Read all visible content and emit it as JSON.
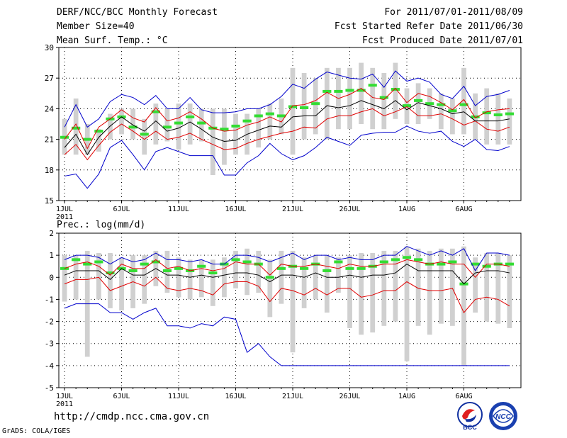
{
  "header": {
    "left": [
      "DERF/NCC/BCC Monthly Forecast",
      "Member Size=40",
      "Mean Surf. Temp.: °C"
    ],
    "right": [
      "For 2011/07/01-2011/08/09",
      "Fcst Started Refer Date 2011/06/30",
      "Fcst Produced Date 2011/07/01"
    ]
  },
  "precip_label": "Prec.: log(mm/d)",
  "url": "http://cmdp.ncc.cma.gov.cn",
  "credit": "GrADS: COLA/IGES",
  "logos": {
    "bcc": "BCC",
    "ncc": "NCC"
  },
  "colors": {
    "mean": "#000000",
    "spread": "#e00000",
    "extreme": "#0000cc",
    "box": "#d0d0d0",
    "median": "#33dd33"
  },
  "chart_data": [
    {
      "type": "line",
      "title": "Mean Surf. Temp.",
      "ylabel": "°C",
      "ylim": [
        15,
        30
      ],
      "yticks": [
        15,
        18,
        21,
        24,
        27,
        30
      ],
      "xticks": [
        {
          "day": 1,
          "label": "1JUL",
          "sub": "2011"
        },
        {
          "day": 6,
          "label": "6JUL"
        },
        {
          "day": 11,
          "label": "11JUL"
        },
        {
          "day": 16,
          "label": "16JUL"
        },
        {
          "day": 21,
          "label": "21JUL"
        },
        {
          "day": 26,
          "label": "26JUL"
        },
        {
          "day": 31,
          "label": "1AUG"
        },
        {
          "day": 36,
          "label": "6AUG"
        }
      ],
      "x": [
        1,
        2,
        3,
        4,
        5,
        6,
        7,
        8,
        9,
        10,
        11,
        12,
        13,
        14,
        15,
        16,
        17,
        18,
        19,
        20,
        21,
        22,
        23,
        24,
        25,
        26,
        27,
        28,
        29,
        30,
        31,
        32,
        33,
        34,
        35,
        36,
        37,
        38,
        39,
        40
      ],
      "series": [
        {
          "name": "max",
          "role": "extreme",
          "values": [
            17.4,
            17.6,
            16.2,
            17.6,
            20.2,
            20.9,
            19.5,
            18.0,
            19.8,
            20.2,
            19.8,
            19.4,
            19.4,
            19.4,
            17.5,
            17.5,
            18.7,
            19.4,
            20.6,
            19.6,
            19.0,
            19.4,
            20.2,
            21.2,
            20.8,
            20.4,
            21.4,
            21.6,
            21.7,
            21.7,
            22.3,
            21.8,
            21.6,
            21.8,
            20.8,
            20.3,
            21.0,
            20.0,
            19.9,
            20.3
          ]
        },
        {
          "name": "min",
          "role": "extreme",
          "values": [
            22.2,
            24.4,
            22.2,
            23.0,
            24.7,
            25.4,
            25.1,
            24.4,
            25.3,
            24.0,
            24.0,
            25.1,
            23.9,
            23.6,
            23.6,
            23.7,
            24.0,
            24.0,
            24.4,
            25.2,
            26.4,
            26.0,
            26.9,
            27.6,
            27.3,
            27.0,
            26.9,
            27.4,
            26.1,
            27.7,
            26.7,
            27.0,
            26.6,
            25.4,
            25.0,
            26.2,
            24.3,
            25.2,
            25.4,
            25.8
          ]
        },
        {
          "name": "lower",
          "role": "spread",
          "values": [
            19.5,
            20.5,
            19.0,
            20.4,
            21.7,
            22.5,
            21.8,
            21.0,
            21.8,
            21.0,
            21.2,
            21.6,
            21.0,
            20.5,
            20.0,
            20.1,
            20.6,
            21.0,
            21.3,
            21.6,
            21.8,
            22.2,
            22.1,
            23.0,
            23.3,
            23.3,
            23.7,
            24.0,
            23.3,
            23.7,
            24.2,
            23.3,
            23.3,
            23.5,
            23.0,
            22.4,
            22.8,
            22.0,
            21.8,
            22.2
          ]
        },
        {
          "name": "upper",
          "role": "spread",
          "values": [
            21.0,
            22.5,
            20.1,
            22.2,
            23.0,
            23.9,
            23.1,
            22.7,
            24.1,
            22.8,
            23.1,
            23.7,
            23.0,
            22.1,
            21.8,
            21.9,
            22.4,
            22.7,
            23.2,
            22.7,
            24.3,
            24.4,
            24.8,
            25.6,
            25.0,
            25.4,
            26.0,
            25.1,
            24.9,
            26.0,
            24.6,
            25.5,
            25.2,
            24.6,
            23.9,
            24.9,
            23.1,
            23.7,
            23.9,
            24.0
          ]
        },
        {
          "name": "mean",
          "role": "mean",
          "values": [
            20.2,
            21.5,
            19.5,
            21.2,
            22.3,
            23.2,
            22.4,
            21.8,
            22.8,
            21.8,
            22.1,
            22.7,
            22.0,
            21.2,
            20.8,
            20.9,
            21.5,
            21.9,
            22.3,
            22.2,
            23.2,
            23.3,
            23.3,
            24.3,
            24.1,
            24.3,
            24.8,
            24.4,
            24.0,
            24.8,
            23.9,
            24.6,
            24.3,
            24.0,
            23.5,
            23.7,
            22.8,
            22.8,
            22.8,
            23.0
          ]
        }
      ],
      "boxes": {
        "low": [
          19.5,
          19.5,
          19.5,
          19.8,
          21.0,
          21.5,
          21.0,
          19.5,
          20.5,
          20.8,
          20.0,
          20.5,
          20.8,
          17.5,
          18.5,
          19.5,
          19.5,
          20.2,
          21.0,
          21.5,
          19.5,
          21.0,
          21.5,
          21.0,
          22.0,
          22.0,
          22.5,
          22.0,
          22.0,
          23.0,
          22.5,
          22.5,
          23.0,
          22.0,
          21.5,
          21.5,
          21.0,
          20.5,
          20.5,
          20.5
        ],
        "high": [
          23.0,
          25.0,
          22.5,
          22.0,
          23.5,
          24.0,
          24.0,
          23.0,
          24.5,
          24.0,
          24.5,
          24.5,
          24.0,
          24.0,
          24.0,
          23.5,
          23.5,
          24.0,
          24.5,
          25.0,
          28.0,
          27.5,
          27.0,
          28.0,
          28.0,
          28.0,
          28.5,
          28.0,
          27.5,
          28.5,
          26.0,
          26.5,
          26.0,
          25.5,
          25.0,
          28.0,
          25.5,
          26.0,
          25.5,
          25.0
        ],
        "median": [
          21.2,
          22.1,
          21.0,
          21.8,
          23.0,
          23.2,
          22.2,
          21.5,
          23.7,
          22.2,
          22.6,
          23.2,
          22.6,
          22.1,
          22.0,
          22.3,
          22.8,
          23.3,
          23.5,
          23.3,
          24.2,
          24.1,
          24.5,
          25.7,
          25.7,
          25.8,
          25.8,
          26.3,
          25.1,
          25.9,
          24.3,
          24.8,
          24.5,
          24.4,
          23.8,
          24.4,
          23.2,
          23.6,
          23.4,
          23.5
        ]
      }
    },
    {
      "type": "line",
      "title": "Prec.: log(mm/d)",
      "ylabel": "log(mm/d)",
      "ylim": [
        -5,
        2
      ],
      "yticks": [
        -5,
        -4,
        -3,
        -2,
        -1,
        0,
        1,
        2
      ],
      "xticks": [
        {
          "day": 1,
          "label": "1JUL",
          "sub": "2011"
        },
        {
          "day": 6,
          "label": "6JUL"
        },
        {
          "day": 11,
          "label": "11JUL"
        },
        {
          "day": 16,
          "label": "16JUL"
        },
        {
          "day": 21,
          "label": "21JUL"
        },
        {
          "day": 26,
          "label": "26JUL"
        },
        {
          "day": 31,
          "label": "1AUG"
        },
        {
          "day": 36,
          "label": "6AUG"
        }
      ],
      "x": [
        1,
        2,
        3,
        4,
        5,
        6,
        7,
        8,
        9,
        10,
        11,
        12,
        13,
        14,
        15,
        16,
        17,
        18,
        19,
        20,
        21,
        22,
        23,
        24,
        25,
        26,
        27,
        28,
        29,
        30,
        31,
        32,
        33,
        34,
        35,
        36,
        37,
        38,
        39,
        40
      ],
      "series": [
        {
          "name": "max",
          "role": "extreme",
          "values": [
            0.8,
            1.0,
            1.0,
            0.9,
            0.6,
            0.9,
            0.7,
            0.8,
            1.1,
            0.8,
            0.8,
            0.7,
            0.8,
            0.6,
            0.6,
            1.0,
            1.0,
            0.9,
            0.7,
            0.9,
            1.1,
            0.8,
            1.0,
            1.0,
            0.8,
            0.9,
            0.8,
            0.8,
            1.0,
            1.0,
            1.4,
            1.2,
            1.0,
            1.2,
            1.0,
            1.3,
            0.3,
            1.1,
            1.1,
            1.0
          ]
        },
        {
          "name": "min",
          "role": "extreme",
          "values": [
            -1.4,
            -1.2,
            -1.2,
            -1.2,
            -1.6,
            -1.6,
            -1.9,
            -1.6,
            -1.4,
            -2.2,
            -2.2,
            -2.3,
            -2.1,
            -2.2,
            -1.8,
            -1.9,
            -3.4,
            -3.0,
            -3.6,
            -4.0,
            -4.0,
            -4.0,
            -4.0,
            -4.0,
            -4.0,
            -4.0,
            -4.0,
            -4.0,
            -4.0,
            -4.0,
            -4.0,
            -4.0,
            -4.0,
            -4.0,
            -4.0,
            -4.0,
            -4.0,
            -4.0,
            -4.0,
            -4.0
          ]
        },
        {
          "name": "lower",
          "role": "spread",
          "values": [
            -0.3,
            -0.1,
            -0.1,
            0.0,
            -0.6,
            -0.4,
            -0.2,
            -0.4,
            0.0,
            -0.5,
            -0.6,
            -0.5,
            -0.6,
            -0.8,
            -0.3,
            -0.2,
            -0.2,
            -0.4,
            -1.1,
            -0.5,
            -0.6,
            -0.8,
            -0.5,
            -0.8,
            -0.5,
            -0.5,
            -0.9,
            -0.8,
            -0.6,
            -0.6,
            -0.2,
            -0.5,
            -0.6,
            -0.6,
            -0.5,
            -1.6,
            -1.0,
            -0.9,
            -1.0,
            -1.3
          ]
        },
        {
          "name": "upper",
          "role": "spread",
          "values": [
            0.4,
            0.6,
            0.7,
            0.5,
            0.1,
            0.6,
            0.4,
            0.4,
            0.8,
            0.4,
            0.5,
            0.3,
            0.4,
            0.3,
            0.4,
            0.7,
            0.6,
            0.6,
            0.1,
            0.6,
            0.5,
            0.5,
            0.6,
            0.5,
            0.4,
            0.6,
            0.5,
            0.5,
            0.6,
            0.6,
            0.8,
            0.7,
            0.6,
            0.7,
            0.6,
            0.6,
            0.0,
            0.6,
            0.6,
            0.5
          ]
        },
        {
          "name": "mean",
          "role": "mean",
          "values": [
            0.1,
            0.3,
            0.3,
            0.3,
            -0.1,
            0.4,
            0.1,
            0.1,
            0.4,
            0.1,
            0.1,
            0.0,
            0.1,
            0.0,
            0.1,
            0.2,
            0.2,
            0.1,
            -0.2,
            0.1,
            0.1,
            0.0,
            0.2,
            0.0,
            0.0,
            0.1,
            0.0,
            0.1,
            0.1,
            0.2,
            0.6,
            0.3,
            0.3,
            0.3,
            0.3,
            -0.3,
            0.2,
            0.3,
            0.3,
            0.2
          ]
        }
      ],
      "boxes": {
        "low": [
          -1.1,
          -1.0,
          -3.6,
          -1.0,
          -1.4,
          -1.5,
          -1.4,
          -1.2,
          -0.4,
          -0.7,
          -0.9,
          -1.0,
          -0.9,
          -1.3,
          -0.9,
          -0.5,
          -0.8,
          -0.7,
          -1.8,
          -1.2,
          -3.4,
          -1.4,
          -1.0,
          -1.6,
          -0.7,
          -2.3,
          -2.6,
          -2.5,
          -2.2,
          -2.0,
          -3.8,
          -2.2,
          -2.6,
          -2.1,
          -2.2,
          -4.0,
          -1.6,
          -2.0,
          -2.1,
          -2.3
        ],
        "high": [
          1.0,
          1.0,
          1.2,
          1.1,
          1.1,
          0.9,
          1.0,
          1.0,
          1.2,
          1.2,
          0.9,
          0.8,
          0.8,
          0.8,
          0.9,
          1.2,
          1.3,
          1.2,
          0.8,
          1.2,
          1.2,
          0.9,
          1.0,
          1.0,
          0.9,
          1.0,
          1.1,
          1.1,
          1.2,
          1.2,
          1.4,
          1.3,
          1.2,
          1.3,
          1.3,
          1.4,
          0.9,
          1.1,
          1.1,
          1.0
        ],
        "median": [
          0.4,
          0.8,
          0.6,
          0.7,
          0.2,
          0.4,
          0.3,
          0.6,
          0.7,
          0.3,
          0.4,
          0.3,
          0.5,
          0.2,
          0.6,
          0.8,
          0.7,
          0.6,
          0.0,
          0.4,
          0.5,
          0.4,
          0.6,
          0.3,
          0.7,
          0.4,
          0.4,
          0.5,
          0.7,
          0.8,
          0.9,
          0.8,
          0.6,
          0.6,
          0.7,
          -0.3,
          0.6,
          0.5,
          0.6,
          0.6
        ]
      }
    }
  ]
}
